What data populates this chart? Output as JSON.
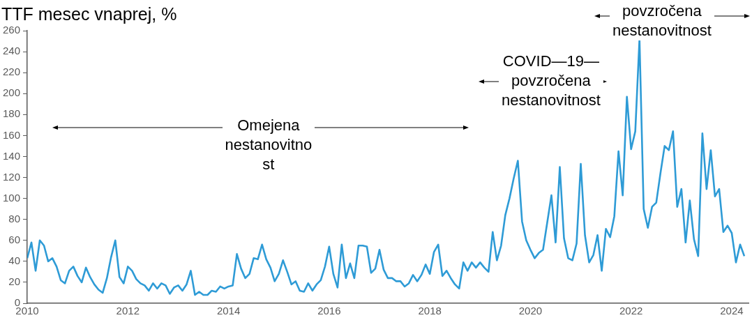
{
  "chart_data": {
    "type": "line",
    "title": "TTF mesec vnaprej, %",
    "annotations": [
      "Omejena\nnestanovitno\nst",
      "COVID—19—\npovzročena\nnestanovitnost",
      "povzročena\nnestanovitnost"
    ],
    "x": [
      "2010-01",
      "2010-02",
      "2010-03",
      "2010-04",
      "2010-05",
      "2010-06",
      "2010-07",
      "2010-08",
      "2010-09",
      "2010-10",
      "2010-11",
      "2010-12",
      "2011-01",
      "2011-02",
      "2011-03",
      "2011-04",
      "2011-05",
      "2011-06",
      "2011-07",
      "2011-08",
      "2011-09",
      "2011-10",
      "2011-11",
      "2011-12",
      "2012-01",
      "2012-02",
      "2012-03",
      "2012-04",
      "2012-05",
      "2012-06",
      "2012-07",
      "2012-08",
      "2012-09",
      "2012-10",
      "2012-11",
      "2012-12",
      "2013-01",
      "2013-02",
      "2013-03",
      "2013-04",
      "2013-05",
      "2013-06",
      "2013-07",
      "2013-08",
      "2013-09",
      "2013-10",
      "2013-11",
      "2013-12",
      "2014-01",
      "2014-02",
      "2014-03",
      "2014-04",
      "2014-05",
      "2014-06",
      "2014-07",
      "2014-08",
      "2014-09",
      "2014-10",
      "2014-11",
      "2014-12",
      "2015-01",
      "2015-02",
      "2015-03",
      "2015-04",
      "2015-05",
      "2015-06",
      "2015-07",
      "2015-08",
      "2015-09",
      "2015-10",
      "2015-11",
      "2015-12",
      "2016-01",
      "2016-02",
      "2016-03",
      "2016-04",
      "2016-05",
      "2016-06",
      "2016-07",
      "2016-08",
      "2016-09",
      "2016-10",
      "2016-11",
      "2016-12",
      "2017-01",
      "2017-02",
      "2017-03",
      "2017-04",
      "2017-05",
      "2017-06",
      "2017-07",
      "2017-08",
      "2017-09",
      "2017-10",
      "2017-11",
      "2017-12",
      "2018-01",
      "2018-02",
      "2018-03",
      "2018-04",
      "2018-05",
      "2018-06",
      "2018-07",
      "2018-08",
      "2018-09",
      "2018-10",
      "2018-11",
      "2018-12",
      "2019-01",
      "2019-02",
      "2019-03",
      "2019-04",
      "2019-05",
      "2019-06",
      "2019-07",
      "2019-08",
      "2019-09",
      "2019-10",
      "2019-11",
      "2019-12",
      "2020-01",
      "2020-02",
      "2020-03",
      "2020-04",
      "2020-05",
      "2020-06",
      "2020-07",
      "2020-08",
      "2020-09",
      "2020-10",
      "2020-11",
      "2020-12",
      "2021-01",
      "2021-02",
      "2021-03",
      "2021-04",
      "2021-05",
      "2021-06",
      "2021-07",
      "2021-08",
      "2021-09",
      "2021-10",
      "2021-11",
      "2021-12",
      "2022-01",
      "2022-02",
      "2022-03",
      "2022-04",
      "2022-05",
      "2022-06",
      "2022-07",
      "2022-08",
      "2022-09",
      "2022-10",
      "2022-11",
      "2022-12",
      "2023-01",
      "2023-02",
      "2023-03",
      "2023-04",
      "2023-05",
      "2023-06",
      "2023-07",
      "2023-08",
      "2023-09",
      "2023-10",
      "2023-11",
      "2023-12",
      "2024-01",
      "2024-02",
      "2024-03",
      "2024-04"
    ],
    "series": [
      {
        "color": "#2e9bd6",
        "values": [
          43,
          58,
          31,
          60,
          55,
          40,
          43,
          35,
          22,
          19,
          31,
          35,
          26,
          20,
          34,
          25,
          18,
          13,
          10,
          24,
          44,
          60,
          25,
          19,
          35,
          31,
          23,
          19,
          17,
          12,
          19,
          14,
          19,
          17,
          9,
          15,
          17,
          12,
          18,
          31,
          8,
          11,
          8,
          8,
          12,
          11,
          16,
          14,
          16,
          17,
          47,
          33,
          24,
          28,
          43,
          42,
          56,
          42,
          34,
          21,
          28,
          41,
          30,
          18,
          21,
          12,
          11,
          19,
          12,
          18,
          22,
          35,
          54,
          28,
          15,
          56,
          24,
          38,
          24,
          55,
          55,
          54,
          29,
          33,
          51,
          32,
          24,
          24,
          21,
          21,
          16,
          19,
          27,
          21,
          27,
          37,
          28,
          49,
          56,
          26,
          31,
          24,
          18,
          14,
          39,
          31,
          39,
          34,
          39,
          34,
          30,
          68,
          41,
          55,
          84,
          100,
          119,
          136,
          78,
          60,
          51,
          43,
          48,
          51,
          77,
          103,
          58,
          130,
          62,
          43,
          41,
          57,
          133,
          65,
          39,
          46,
          65,
          31,
          71,
          63,
          83,
          145,
          103,
          197,
          147,
          164,
          252,
          90,
          72,
          92,
          96,
          124,
          150,
          146,
          164,
          92,
          109,
          58,
          98,
          61,
          45,
          162,
          109,
          146,
          102,
          109,
          68,
          74,
          67,
          39,
          56,
          45
        ]
      }
    ],
    "xlim": [
      "2010-01",
      "2024-05"
    ],
    "xticks": [
      "2010",
      "2012",
      "2014",
      "2016",
      "2018",
      "2020",
      "2022",
      "2024"
    ],
    "ylim": [
      0,
      260
    ],
    "yticks": [
      0,
      20,
      40,
      60,
      80,
      100,
      120,
      140,
      160,
      180,
      200,
      220,
      240,
      260
    ],
    "grid": false,
    "legend": false,
    "marker": "none",
    "line_style": "solid"
  }
}
